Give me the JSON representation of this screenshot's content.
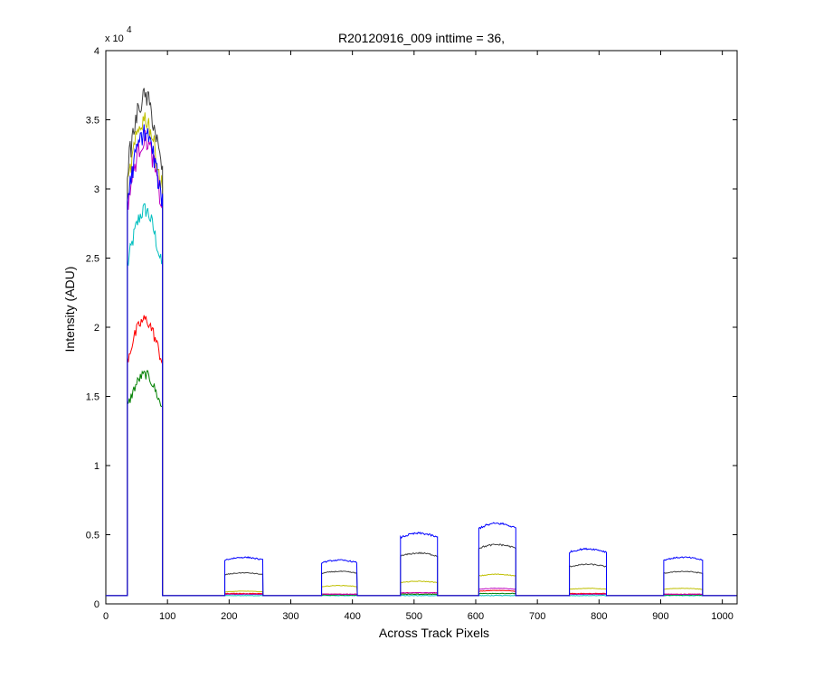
{
  "chart_data": {
    "type": "line",
    "title": "R20120916_009 inttime = 36,",
    "xlabel": "Across Track Pixels",
    "ylabel": "Intensity (ADU)",
    "y_multiplier_base": "x 10",
    "y_multiplier_exponent": "4",
    "xlim": [
      0,
      1024
    ],
    "ylim": [
      0,
      4
    ],
    "x_ticks": [
      0,
      100,
      200,
      300,
      400,
      500,
      600,
      700,
      800,
      900,
      1000
    ],
    "y_ticks": [
      0,
      0.5,
      1,
      1.5,
      2,
      2.5,
      3,
      3.5,
      4
    ],
    "x_tick_labels": [
      "0",
      "100",
      "200",
      "300",
      "400",
      "500",
      "600",
      "700",
      "800",
      "900",
      "1000"
    ],
    "y_tick_labels": [
      "0",
      "0.5",
      "1",
      "1.5",
      "2",
      "2.5",
      "3",
      "3.5",
      "4"
    ],
    "baseline": 0.06,
    "grid": false,
    "legend": "none",
    "segments": [
      {
        "start": 35,
        "end": 92
      },
      {
        "start": 193,
        "end": 255
      },
      {
        "start": 350,
        "end": 408
      },
      {
        "start": 478,
        "end": 538
      },
      {
        "start": 605,
        "end": 665
      },
      {
        "start": 752,
        "end": 812
      },
      {
        "start": 905,
        "end": 968
      }
    ],
    "series": [
      {
        "color": "#00bfbf",
        "plateaus": [
          2.8,
          0.06,
          0.06,
          0.06,
          0.06,
          0.06,
          0.06
        ]
      },
      {
        "color": "#008000",
        "plateaus": [
          1.63,
          0.07,
          0.065,
          0.07,
          0.075,
          0.07,
          0.065
        ]
      },
      {
        "color": "#ff0000",
        "plateaus": [
          2.02,
          0.075,
          0.07,
          0.08,
          0.095,
          0.075,
          0.07
        ]
      },
      {
        "color": "#bf00bf",
        "plateaus": [
          3.3,
          0.07,
          0.07,
          0.08,
          0.11,
          0.07,
          0.07
        ]
      },
      {
        "color": "#bfbf00",
        "plateaus": [
          3.45,
          0.09,
          0.13,
          0.16,
          0.21,
          0.11,
          0.11
        ]
      },
      {
        "color": "#404040",
        "plateaus": [
          3.6,
          0.22,
          0.23,
          0.36,
          0.42,
          0.28,
          0.23
        ]
      },
      {
        "color": "#0000ff",
        "plateaus": [
          3.35,
          0.33,
          0.31,
          0.5,
          0.57,
          0.39,
          0.33
        ]
      }
    ]
  }
}
